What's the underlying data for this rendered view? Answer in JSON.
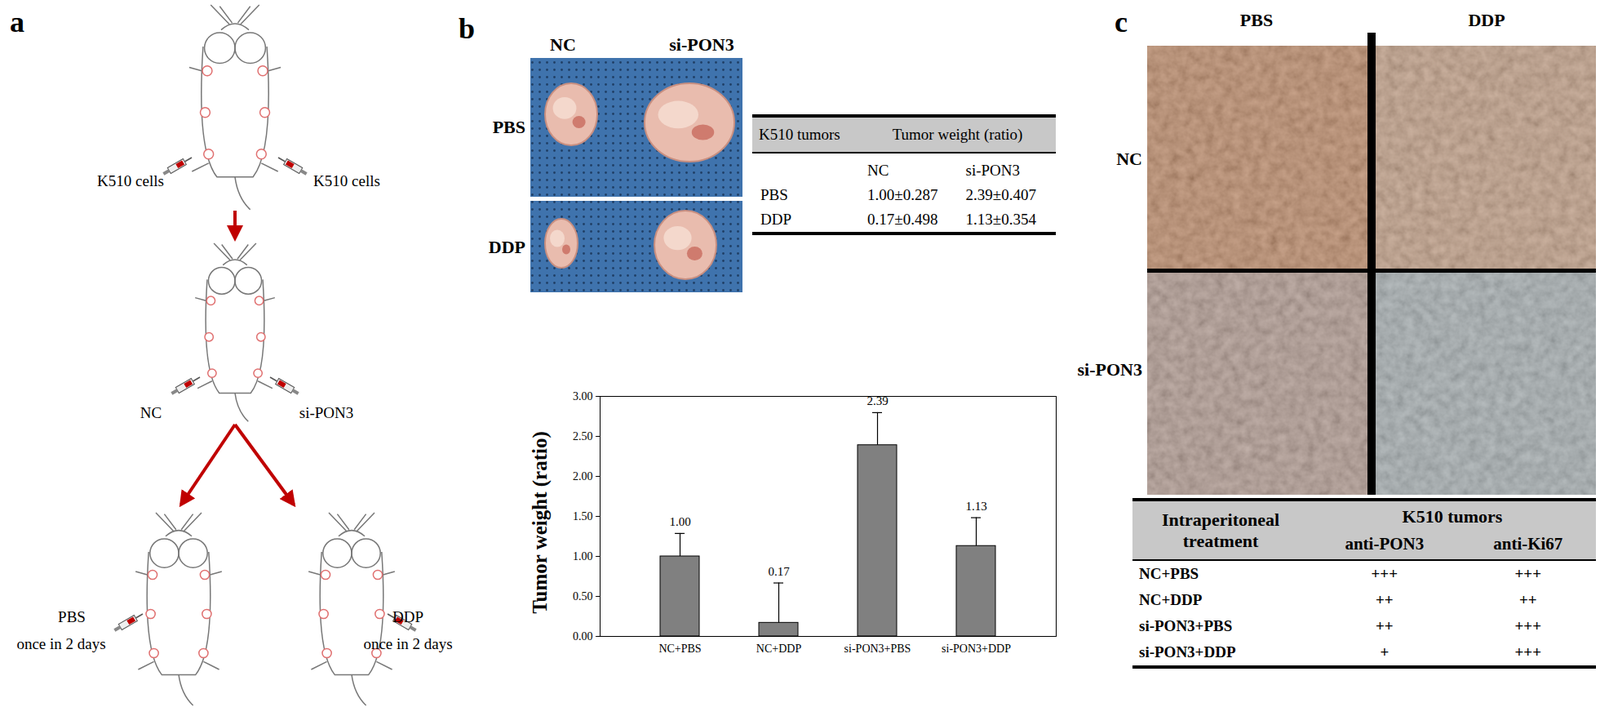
{
  "panel_labels": [
    "a",
    "b",
    "c"
  ],
  "diagram": {
    "injection_left": "K510 cells",
    "injection_right": "K510 cells",
    "treatment_left": "NC",
    "treatment_right": "si-PON3",
    "drug_left": "PBS",
    "drug_right": "DDP",
    "schedule_left": "once in 2 days",
    "schedule_right": "once in 2 days"
  },
  "photo": {
    "columns": [
      "NC",
      "si-PON3"
    ],
    "rows": [
      "PBS",
      "DDP"
    ]
  },
  "table_b": {
    "header": [
      "K510 tumors",
      "Tumor weight (ratio)"
    ],
    "subheader": [
      "NC",
      "si-PON3"
    ],
    "rows": [
      [
        "PBS",
        "1.00±0.287",
        "2.39±0.407"
      ],
      [
        "DDP",
        "0.17±0.498",
        "1.13±0.354"
      ]
    ]
  },
  "chart_data": {
    "type": "bar",
    "y_label": "Tumor weight (ratio)",
    "categories": [
      "NC+PBS",
      "NC+DDP",
      "si-PON3+PBS",
      "si-PON3+DDP"
    ],
    "values": [
      1.0,
      0.17,
      2.39,
      1.13
    ],
    "value_labels": [
      "1.00",
      "0.17",
      "2.39",
      "1.13"
    ],
    "error": [
      0.287,
      0.498,
      0.407,
      0.354
    ],
    "color": "#808080",
    "data_labels": true,
    "grid": false,
    "ylim": [
      0,
      3
    ],
    "yticks": [
      {
        "value": 0,
        "label": "0.00"
      },
      {
        "value": 0.5,
        "label": "0.50"
      },
      {
        "value": 1,
        "label": "1.00"
      },
      {
        "value": 1.5,
        "label": "1.50"
      },
      {
        "value": 2,
        "label": "2.00"
      },
      {
        "value": 2.5,
        "label": "2.50"
      },
      {
        "value": 3,
        "label": "3.00"
      }
    ]
  },
  "ihc": {
    "columns": [
      "PBS",
      "DDP"
    ],
    "rows": [
      "NC",
      "si-PON3"
    ]
  },
  "table_c": {
    "header": [
      "Intraperitoneal treatment",
      "K510 tumors"
    ],
    "subheader": [
      "anti-PON3",
      "anti-Ki67"
    ],
    "rows": [
      [
        "NC+PBS",
        "+++",
        "+++"
      ],
      [
        "NC+DDP",
        "++",
        "++"
      ],
      [
        "si-PON3+PBS",
        "++",
        "+++"
      ],
      [
        "si-PON3+DDP",
        "+",
        "+++"
      ]
    ]
  }
}
